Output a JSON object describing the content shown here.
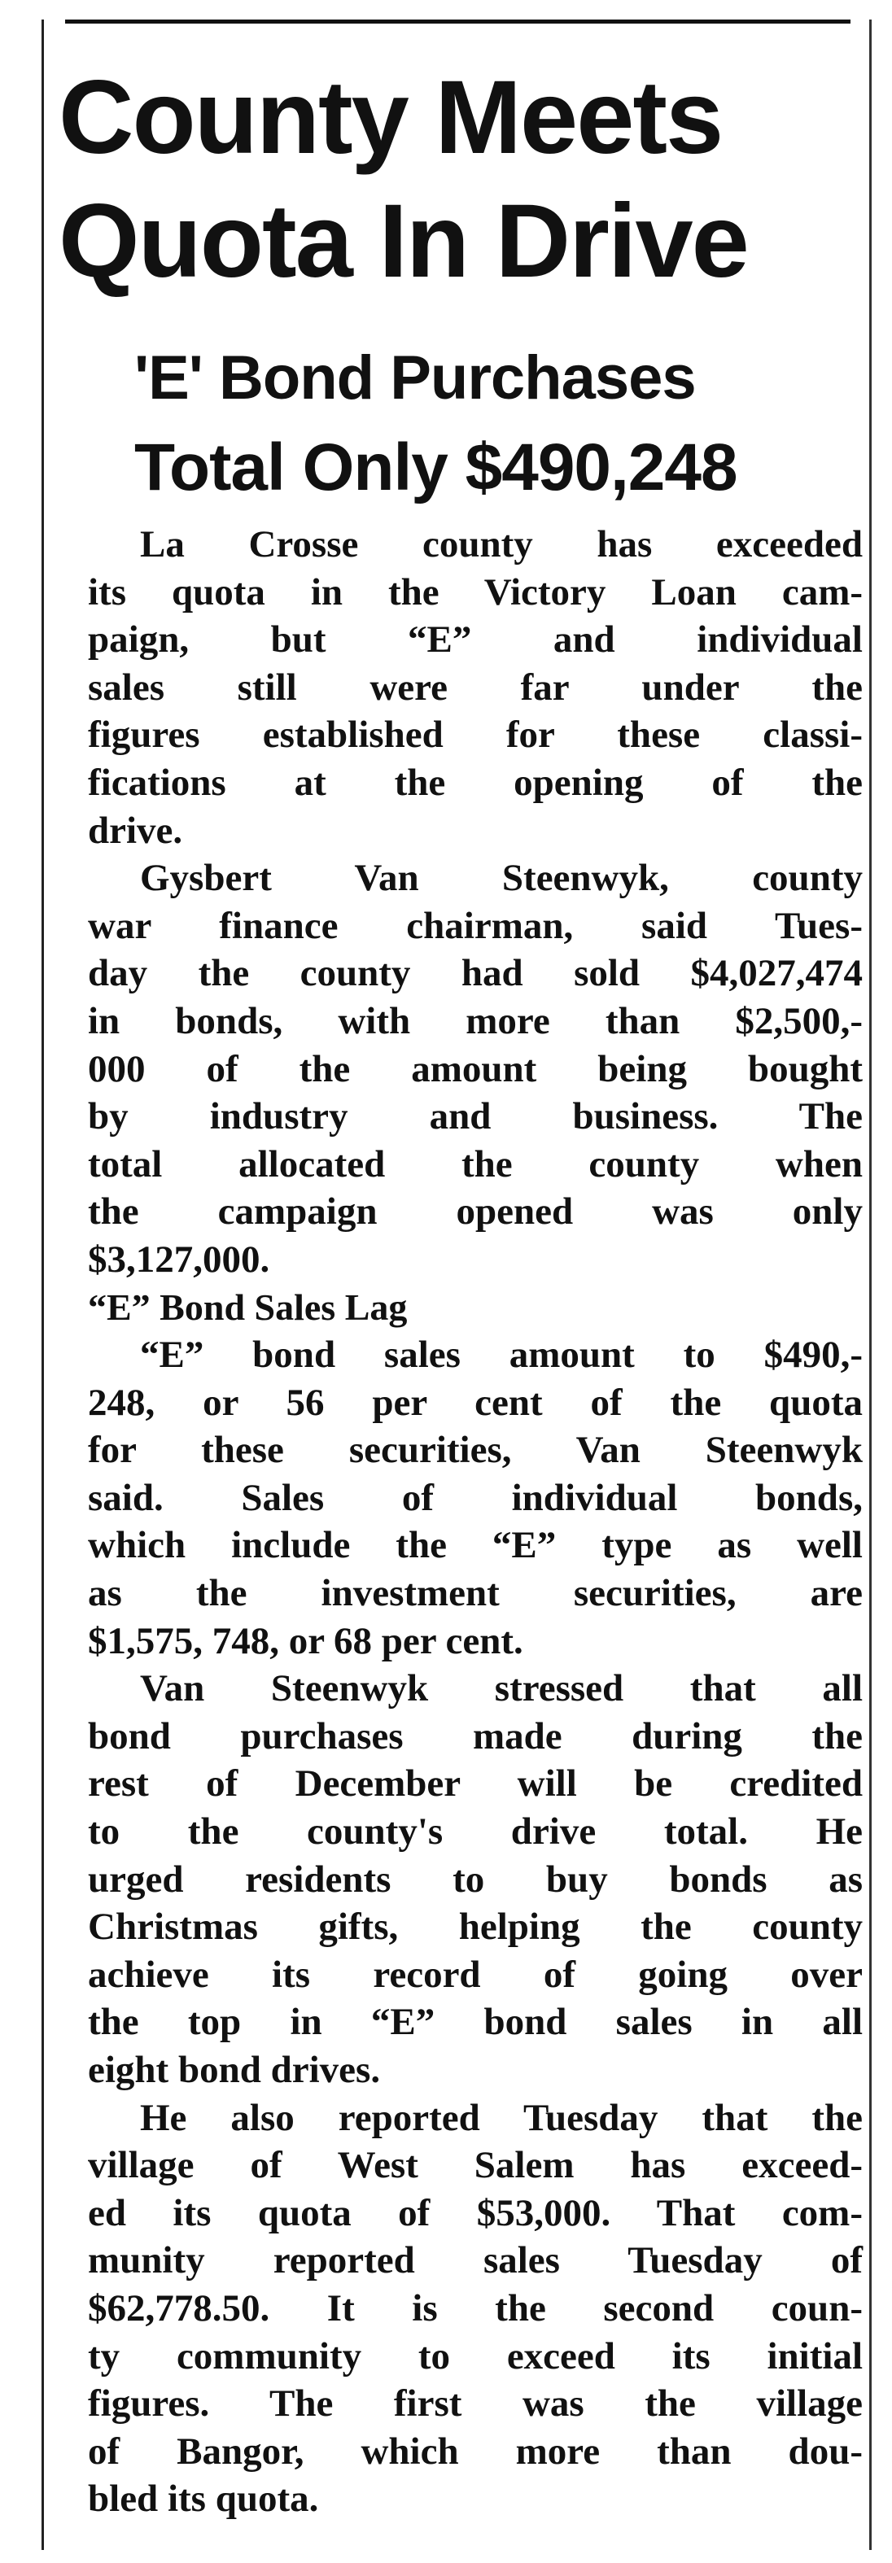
{
  "article": {
    "headline": [
      "County Meets",
      "Quota In Drive"
    ],
    "subheadline": [
      "'E' Bond Purchases",
      "Total Only $490,248"
    ],
    "paragraphs": [
      [
        "La Crosse county has exceeded",
        "its quota in the Victory Loan cam-",
        "paign, but “E” and individual",
        "sales still were far under the",
        "figures established for these classi-",
        "fications at the opening of the",
        "drive."
      ],
      [
        "Gysbert Van Steenwyk, county",
        "war finance chairman, said Tues-",
        "day the county had sold $4,027,474",
        "in bonds, with more than $2,500,-",
        "000 of the amount being bought",
        "by industry and business. The",
        "total allocated the county when",
        "the campaign opened was only",
        "$3,127,000."
      ],
      [
        "“E” bond sales amount to $490,-",
        "248, or 56 per cent of the quota",
        "for these securities, Van Steenwyk",
        "said. Sales of individual bonds,",
        "which include the “E” type as well",
        "as the investment securities, are",
        "$1,575, 748, or 68 per cent."
      ],
      [
        "Van Steenwyk stressed that all",
        "bond purchases made during the",
        "rest of December will be credited",
        "to the county's drive total. He",
        "urged residents to buy bonds as",
        "Christmas gifts, helping the county",
        "achieve its record of going over",
        "the top in “E” bond sales in all",
        "eight bond drives."
      ],
      [
        "He also reported Tuesday that the",
        "village of West Salem has exceed-",
        "ed its quota of $53,000. That com-",
        "munity reported sales Tuesday of",
        "$62,778.50. It is the second coun-",
        "ty community to exceed its initial",
        "figures. The first was the village",
        "of Bangor, which more than dou-",
        "bled its quota."
      ]
    ],
    "section_heading": "“E” Bond Sales Lag"
  }
}
